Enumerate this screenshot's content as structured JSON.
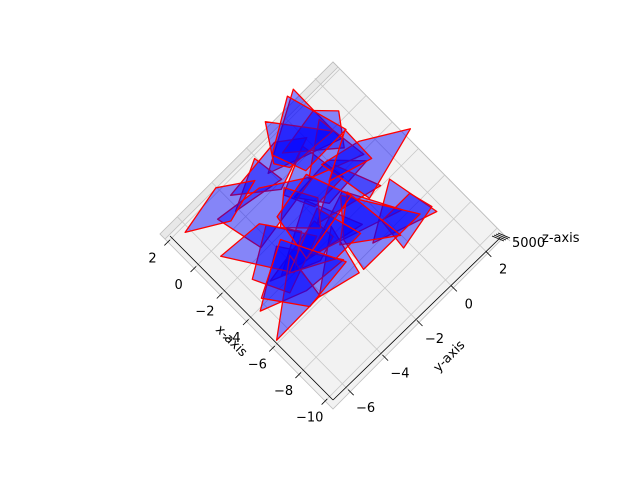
{
  "chart_data": {
    "type": "3d-polygon-collection",
    "title": "",
    "xlabel": "x-axis",
    "ylabel": "y-axis",
    "zlabel": "z-axis",
    "x_ticks": [
      "2",
      "0",
      "−2",
      "−4",
      "−6",
      "−8",
      "−10"
    ],
    "y_ticks": [
      "2",
      "0",
      "−2",
      "−4",
      "−6"
    ],
    "z_tick_label": "5000",
    "xlim": [
      2.6,
      -10.6
    ],
    "ylim": [
      -7.0,
      3.0
    ],
    "grid": true,
    "face_color": "#0000ff",
    "face_alpha": 0.45,
    "edge_color": "#ff0000",
    "polygon_count": 30,
    "random_seed": 7
  }
}
